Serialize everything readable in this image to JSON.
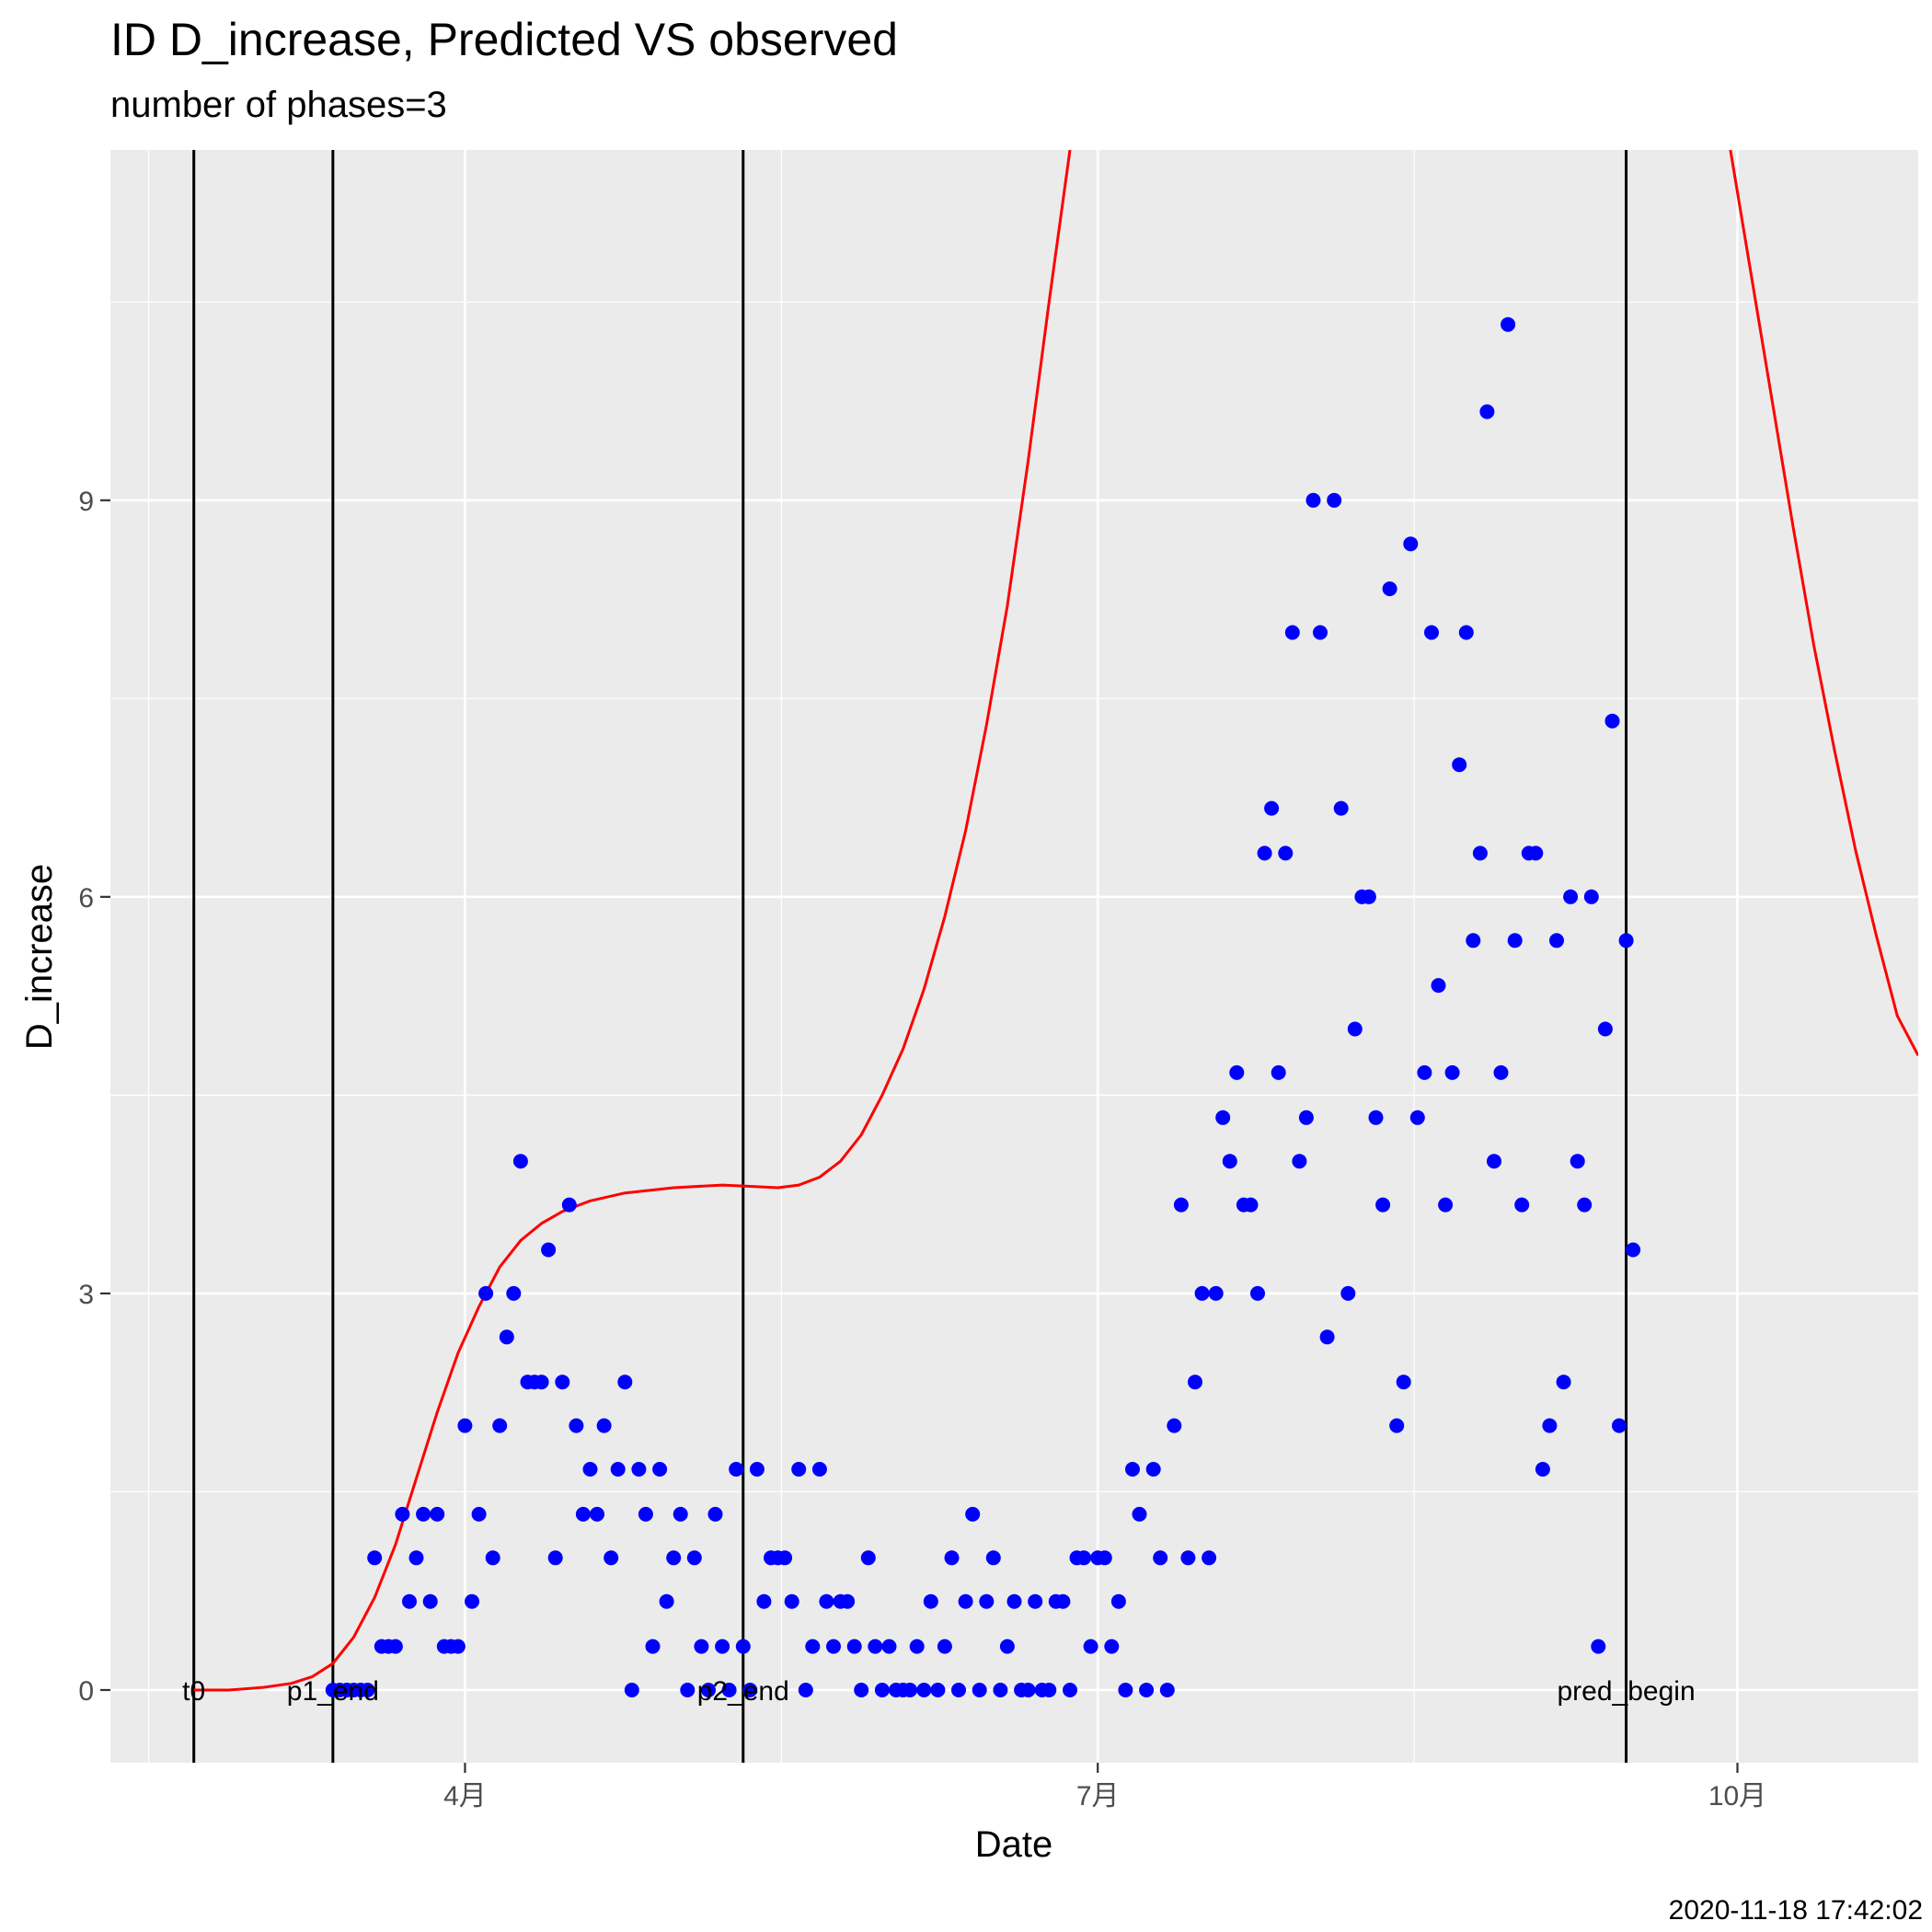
{
  "chart_data": {
    "type": "scatter",
    "title": "ID D_increase, Predicted VS observed",
    "subtitle": "number of phases=3",
    "xlabel": "Date",
    "ylabel": "D_increase",
    "timestamp": "2020-11-18 17:42:02",
    "x_axis_type": "date",
    "xlim": [
      "2020-02-10",
      "2020-10-27"
    ],
    "ylim": [
      -0.55,
      11.65
    ],
    "x_ticks": [
      {
        "date": "2020-04-01",
        "label": "4月"
      },
      {
        "date": "2020-07-01",
        "label": "7月"
      },
      {
        "date": "2020-10-01",
        "label": "10月"
      }
    ],
    "y_ticks": [
      0,
      3,
      6,
      9
    ],
    "grid": true,
    "phase_lines": [
      {
        "date": "2020-02-22",
        "label": "t0"
      },
      {
        "date": "2020-03-13",
        "label": "p1_end"
      },
      {
        "date": "2020-05-11",
        "label": "p2_end"
      },
      {
        "date": "2020-09-15",
        "label": "pred_begin"
      }
    ],
    "series": [
      {
        "type": "line",
        "color": "#FF0000",
        "points": [
          [
            "2020-02-22",
            0
          ],
          [
            "2020-02-27",
            0
          ],
          [
            "2020-03-03",
            0.02
          ],
          [
            "2020-03-07",
            0.05
          ],
          [
            "2020-03-10",
            0.1
          ],
          [
            "2020-03-13",
            0.2
          ],
          [
            "2020-03-16",
            0.4
          ],
          [
            "2020-03-19",
            0.7
          ],
          [
            "2020-03-22",
            1.1
          ],
          [
            "2020-03-25",
            1.6
          ],
          [
            "2020-03-28",
            2.1
          ],
          [
            "2020-03-31",
            2.55
          ],
          [
            "2020-04-03",
            2.9
          ],
          [
            "2020-04-06",
            3.2
          ],
          [
            "2020-04-09",
            3.4
          ],
          [
            "2020-04-12",
            3.53
          ],
          [
            "2020-04-15",
            3.62
          ],
          [
            "2020-04-19",
            3.7
          ],
          [
            "2020-04-24",
            3.76
          ],
          [
            "2020-05-01",
            3.8
          ],
          [
            "2020-05-08",
            3.82
          ],
          [
            "2020-05-12",
            3.81
          ],
          [
            "2020-05-16",
            3.8
          ],
          [
            "2020-05-19",
            3.82
          ],
          [
            "2020-05-22",
            3.88
          ],
          [
            "2020-05-25",
            4.0
          ],
          [
            "2020-05-28",
            4.2
          ],
          [
            "2020-05-31",
            4.5
          ],
          [
            "2020-06-03",
            4.85
          ],
          [
            "2020-06-06",
            5.3
          ],
          [
            "2020-06-09",
            5.85
          ],
          [
            "2020-06-12",
            6.5
          ],
          [
            "2020-06-15",
            7.3
          ],
          [
            "2020-06-18",
            8.2
          ],
          [
            "2020-06-21",
            9.3
          ],
          [
            "2020-06-24",
            10.5
          ],
          [
            "2020-06-27",
            11.65
          ]
        ]
      },
      {
        "type": "line",
        "color": "#FF0000",
        "points": [
          [
            "2020-09-30",
            11.65
          ],
          [
            "2020-10-03",
            10.7
          ],
          [
            "2020-10-06",
            9.75
          ],
          [
            "2020-10-09",
            8.8
          ],
          [
            "2020-10-12",
            7.9
          ],
          [
            "2020-10-15",
            7.1
          ],
          [
            "2020-10-18",
            6.35
          ],
          [
            "2020-10-21",
            5.7
          ],
          [
            "2020-10-24",
            5.1
          ],
          [
            "2020-10-27",
            4.8
          ]
        ]
      },
      {
        "type": "scatter",
        "color": "#0000FF",
        "points": [
          [
            "2020-03-13",
            0
          ],
          [
            "2020-03-14",
            0
          ],
          [
            "2020-03-15",
            0
          ],
          [
            "2020-03-16",
            0
          ],
          [
            "2020-03-17",
            0
          ],
          [
            "2020-03-18",
            0
          ],
          [
            "2020-03-19",
            1
          ],
          [
            "2020-03-20",
            0.33
          ],
          [
            "2020-03-21",
            0.33
          ],
          [
            "2020-03-22",
            0.33
          ],
          [
            "2020-03-23",
            1.33
          ],
          [
            "2020-03-24",
            0.67
          ],
          [
            "2020-03-25",
            1
          ],
          [
            "2020-03-26",
            1.33
          ],
          [
            "2020-03-27",
            0.67
          ],
          [
            "2020-03-28",
            1.33
          ],
          [
            "2020-03-29",
            0.33
          ],
          [
            "2020-03-30",
            0.33
          ],
          [
            "2020-03-31",
            0.33
          ],
          [
            "2020-04-01",
            2
          ],
          [
            "2020-04-02",
            0.67
          ],
          [
            "2020-04-03",
            1.33
          ],
          [
            "2020-04-04",
            3
          ],
          [
            "2020-04-05",
            1
          ],
          [
            "2020-04-06",
            2
          ],
          [
            "2020-04-07",
            2.67
          ],
          [
            "2020-04-08",
            3
          ],
          [
            "2020-04-09",
            4
          ],
          [
            "2020-04-10",
            2.33
          ],
          [
            "2020-04-11",
            2.33
          ],
          [
            "2020-04-12",
            2.33
          ],
          [
            "2020-04-13",
            3.33
          ],
          [
            "2020-04-14",
            1
          ],
          [
            "2020-04-15",
            2.33
          ],
          [
            "2020-04-16",
            3.67
          ],
          [
            "2020-04-17",
            2
          ],
          [
            "2020-04-18",
            1.33
          ],
          [
            "2020-04-19",
            1.67
          ],
          [
            "2020-04-20",
            1.33
          ],
          [
            "2020-04-21",
            2
          ],
          [
            "2020-04-22",
            1
          ],
          [
            "2020-04-23",
            1.67
          ],
          [
            "2020-04-24",
            2.33
          ],
          [
            "2020-04-25",
            0
          ],
          [
            "2020-04-26",
            1.67
          ],
          [
            "2020-04-27",
            1.33
          ],
          [
            "2020-04-28",
            0.33
          ],
          [
            "2020-04-29",
            1.67
          ],
          [
            "2020-04-30",
            0.67
          ],
          [
            "2020-05-01",
            1
          ],
          [
            "2020-05-02",
            1.33
          ],
          [
            "2020-05-03",
            0
          ],
          [
            "2020-05-04",
            1
          ],
          [
            "2020-05-05",
            0.33
          ],
          [
            "2020-05-06",
            0
          ],
          [
            "2020-05-07",
            1.33
          ],
          [
            "2020-05-08",
            0.33
          ],
          [
            "2020-05-09",
            0
          ],
          [
            "2020-05-10",
            1.67
          ],
          [
            "2020-05-11",
            0.33
          ],
          [
            "2020-05-12",
            0
          ],
          [
            "2020-05-13",
            1.67
          ],
          [
            "2020-05-14",
            0.67
          ],
          [
            "2020-05-15",
            1
          ],
          [
            "2020-05-16",
            1
          ],
          [
            "2020-05-17",
            1
          ],
          [
            "2020-05-18",
            0.67
          ],
          [
            "2020-05-19",
            1.67
          ],
          [
            "2020-05-20",
            0
          ],
          [
            "2020-05-21",
            0.33
          ],
          [
            "2020-05-22",
            1.67
          ],
          [
            "2020-05-23",
            0.67
          ],
          [
            "2020-05-24",
            0.33
          ],
          [
            "2020-05-25",
            0.67
          ],
          [
            "2020-05-26",
            0.67
          ],
          [
            "2020-05-27",
            0.33
          ],
          [
            "2020-05-28",
            0
          ],
          [
            "2020-05-29",
            1
          ],
          [
            "2020-05-30",
            0.33
          ],
          [
            "2020-05-31",
            0
          ],
          [
            "2020-06-01",
            0.33
          ],
          [
            "2020-06-02",
            0
          ],
          [
            "2020-06-03",
            0
          ],
          [
            "2020-06-04",
            0
          ],
          [
            "2020-06-05",
            0.33
          ],
          [
            "2020-06-06",
            0
          ],
          [
            "2020-06-07",
            0.67
          ],
          [
            "2020-06-08",
            0
          ],
          [
            "2020-06-09",
            0.33
          ],
          [
            "2020-06-10",
            1
          ],
          [
            "2020-06-11",
            0
          ],
          [
            "2020-06-12",
            0.67
          ],
          [
            "2020-06-13",
            1.33
          ],
          [
            "2020-06-14",
            0
          ],
          [
            "2020-06-15",
            0.67
          ],
          [
            "2020-06-16",
            1
          ],
          [
            "2020-06-17",
            0
          ],
          [
            "2020-06-18",
            0.33
          ],
          [
            "2020-06-19",
            0.67
          ],
          [
            "2020-06-20",
            0
          ],
          [
            "2020-06-21",
            0
          ],
          [
            "2020-06-22",
            0.67
          ],
          [
            "2020-06-23",
            0
          ],
          [
            "2020-06-24",
            0
          ],
          [
            "2020-06-25",
            0.67
          ],
          [
            "2020-06-26",
            0.67
          ],
          [
            "2020-06-27",
            0
          ],
          [
            "2020-06-28",
            1
          ],
          [
            "2020-06-29",
            1
          ],
          [
            "2020-06-30",
            0.33
          ],
          [
            "2020-07-01",
            1
          ],
          [
            "2020-07-02",
            1
          ],
          [
            "2020-07-03",
            0.33
          ],
          [
            "2020-07-04",
            0.67
          ],
          [
            "2020-07-05",
            0
          ],
          [
            "2020-07-06",
            1.67
          ],
          [
            "2020-07-07",
            1.33
          ],
          [
            "2020-07-08",
            0
          ],
          [
            "2020-07-09",
            1.67
          ],
          [
            "2020-07-10",
            1
          ],
          [
            "2020-07-11",
            0
          ],
          [
            "2020-07-12",
            2
          ],
          [
            "2020-07-13",
            3.67
          ],
          [
            "2020-07-14",
            1
          ],
          [
            "2020-07-15",
            2.33
          ],
          [
            "2020-07-16",
            3
          ],
          [
            "2020-07-17",
            1
          ],
          [
            "2020-07-18",
            3
          ],
          [
            "2020-07-19",
            4.33
          ],
          [
            "2020-07-20",
            4
          ],
          [
            "2020-07-21",
            4.67
          ],
          [
            "2020-07-22",
            3.67
          ],
          [
            "2020-07-23",
            3.67
          ],
          [
            "2020-07-24",
            3
          ],
          [
            "2020-07-25",
            6.33
          ],
          [
            "2020-07-26",
            6.67
          ],
          [
            "2020-07-27",
            4.67
          ],
          [
            "2020-07-28",
            6.33
          ],
          [
            "2020-07-29",
            8
          ],
          [
            "2020-07-30",
            4
          ],
          [
            "2020-07-31",
            4.33
          ],
          [
            "2020-08-01",
            9
          ],
          [
            "2020-08-02",
            8
          ],
          [
            "2020-08-03",
            2.67
          ],
          [
            "2020-08-04",
            9
          ],
          [
            "2020-08-05",
            6.67
          ],
          [
            "2020-08-06",
            3
          ],
          [
            "2020-08-07",
            5
          ],
          [
            "2020-08-08",
            6
          ],
          [
            "2020-08-09",
            6
          ],
          [
            "2020-08-10",
            4.33
          ],
          [
            "2020-08-11",
            3.67
          ],
          [
            "2020-08-12",
            8.33
          ],
          [
            "2020-08-13",
            2
          ],
          [
            "2020-08-14",
            2.33
          ],
          [
            "2020-08-15",
            8.67
          ],
          [
            "2020-08-16",
            4.33
          ],
          [
            "2020-08-17",
            4.67
          ],
          [
            "2020-08-18",
            8
          ],
          [
            "2020-08-19",
            5.33
          ],
          [
            "2020-08-20",
            3.67
          ],
          [
            "2020-08-21",
            4.67
          ],
          [
            "2020-08-22",
            7
          ],
          [
            "2020-08-23",
            8
          ],
          [
            "2020-08-24",
            5.67
          ],
          [
            "2020-08-25",
            6.33
          ],
          [
            "2020-08-26",
            9.67
          ],
          [
            "2020-08-27",
            4
          ],
          [
            "2020-08-28",
            4.67
          ],
          [
            "2020-08-29",
            10.33
          ],
          [
            "2020-08-30",
            5.67
          ],
          [
            "2020-08-31",
            3.67
          ],
          [
            "2020-09-01",
            6.33
          ],
          [
            "2020-09-02",
            6.33
          ],
          [
            "2020-09-03",
            1.67
          ],
          [
            "2020-09-04",
            2
          ],
          [
            "2020-09-05",
            5.67
          ],
          [
            "2020-09-06",
            2.33
          ],
          [
            "2020-09-07",
            6
          ],
          [
            "2020-09-08",
            4
          ],
          [
            "2020-09-09",
            3.67
          ],
          [
            "2020-09-10",
            6
          ],
          [
            "2020-09-11",
            0.33
          ],
          [
            "2020-09-12",
            5
          ],
          [
            "2020-09-13",
            7.33
          ],
          [
            "2020-09-14",
            2
          ],
          [
            "2020-09-15",
            5.67
          ],
          [
            "2020-09-16",
            3.33
          ]
        ]
      }
    ]
  }
}
